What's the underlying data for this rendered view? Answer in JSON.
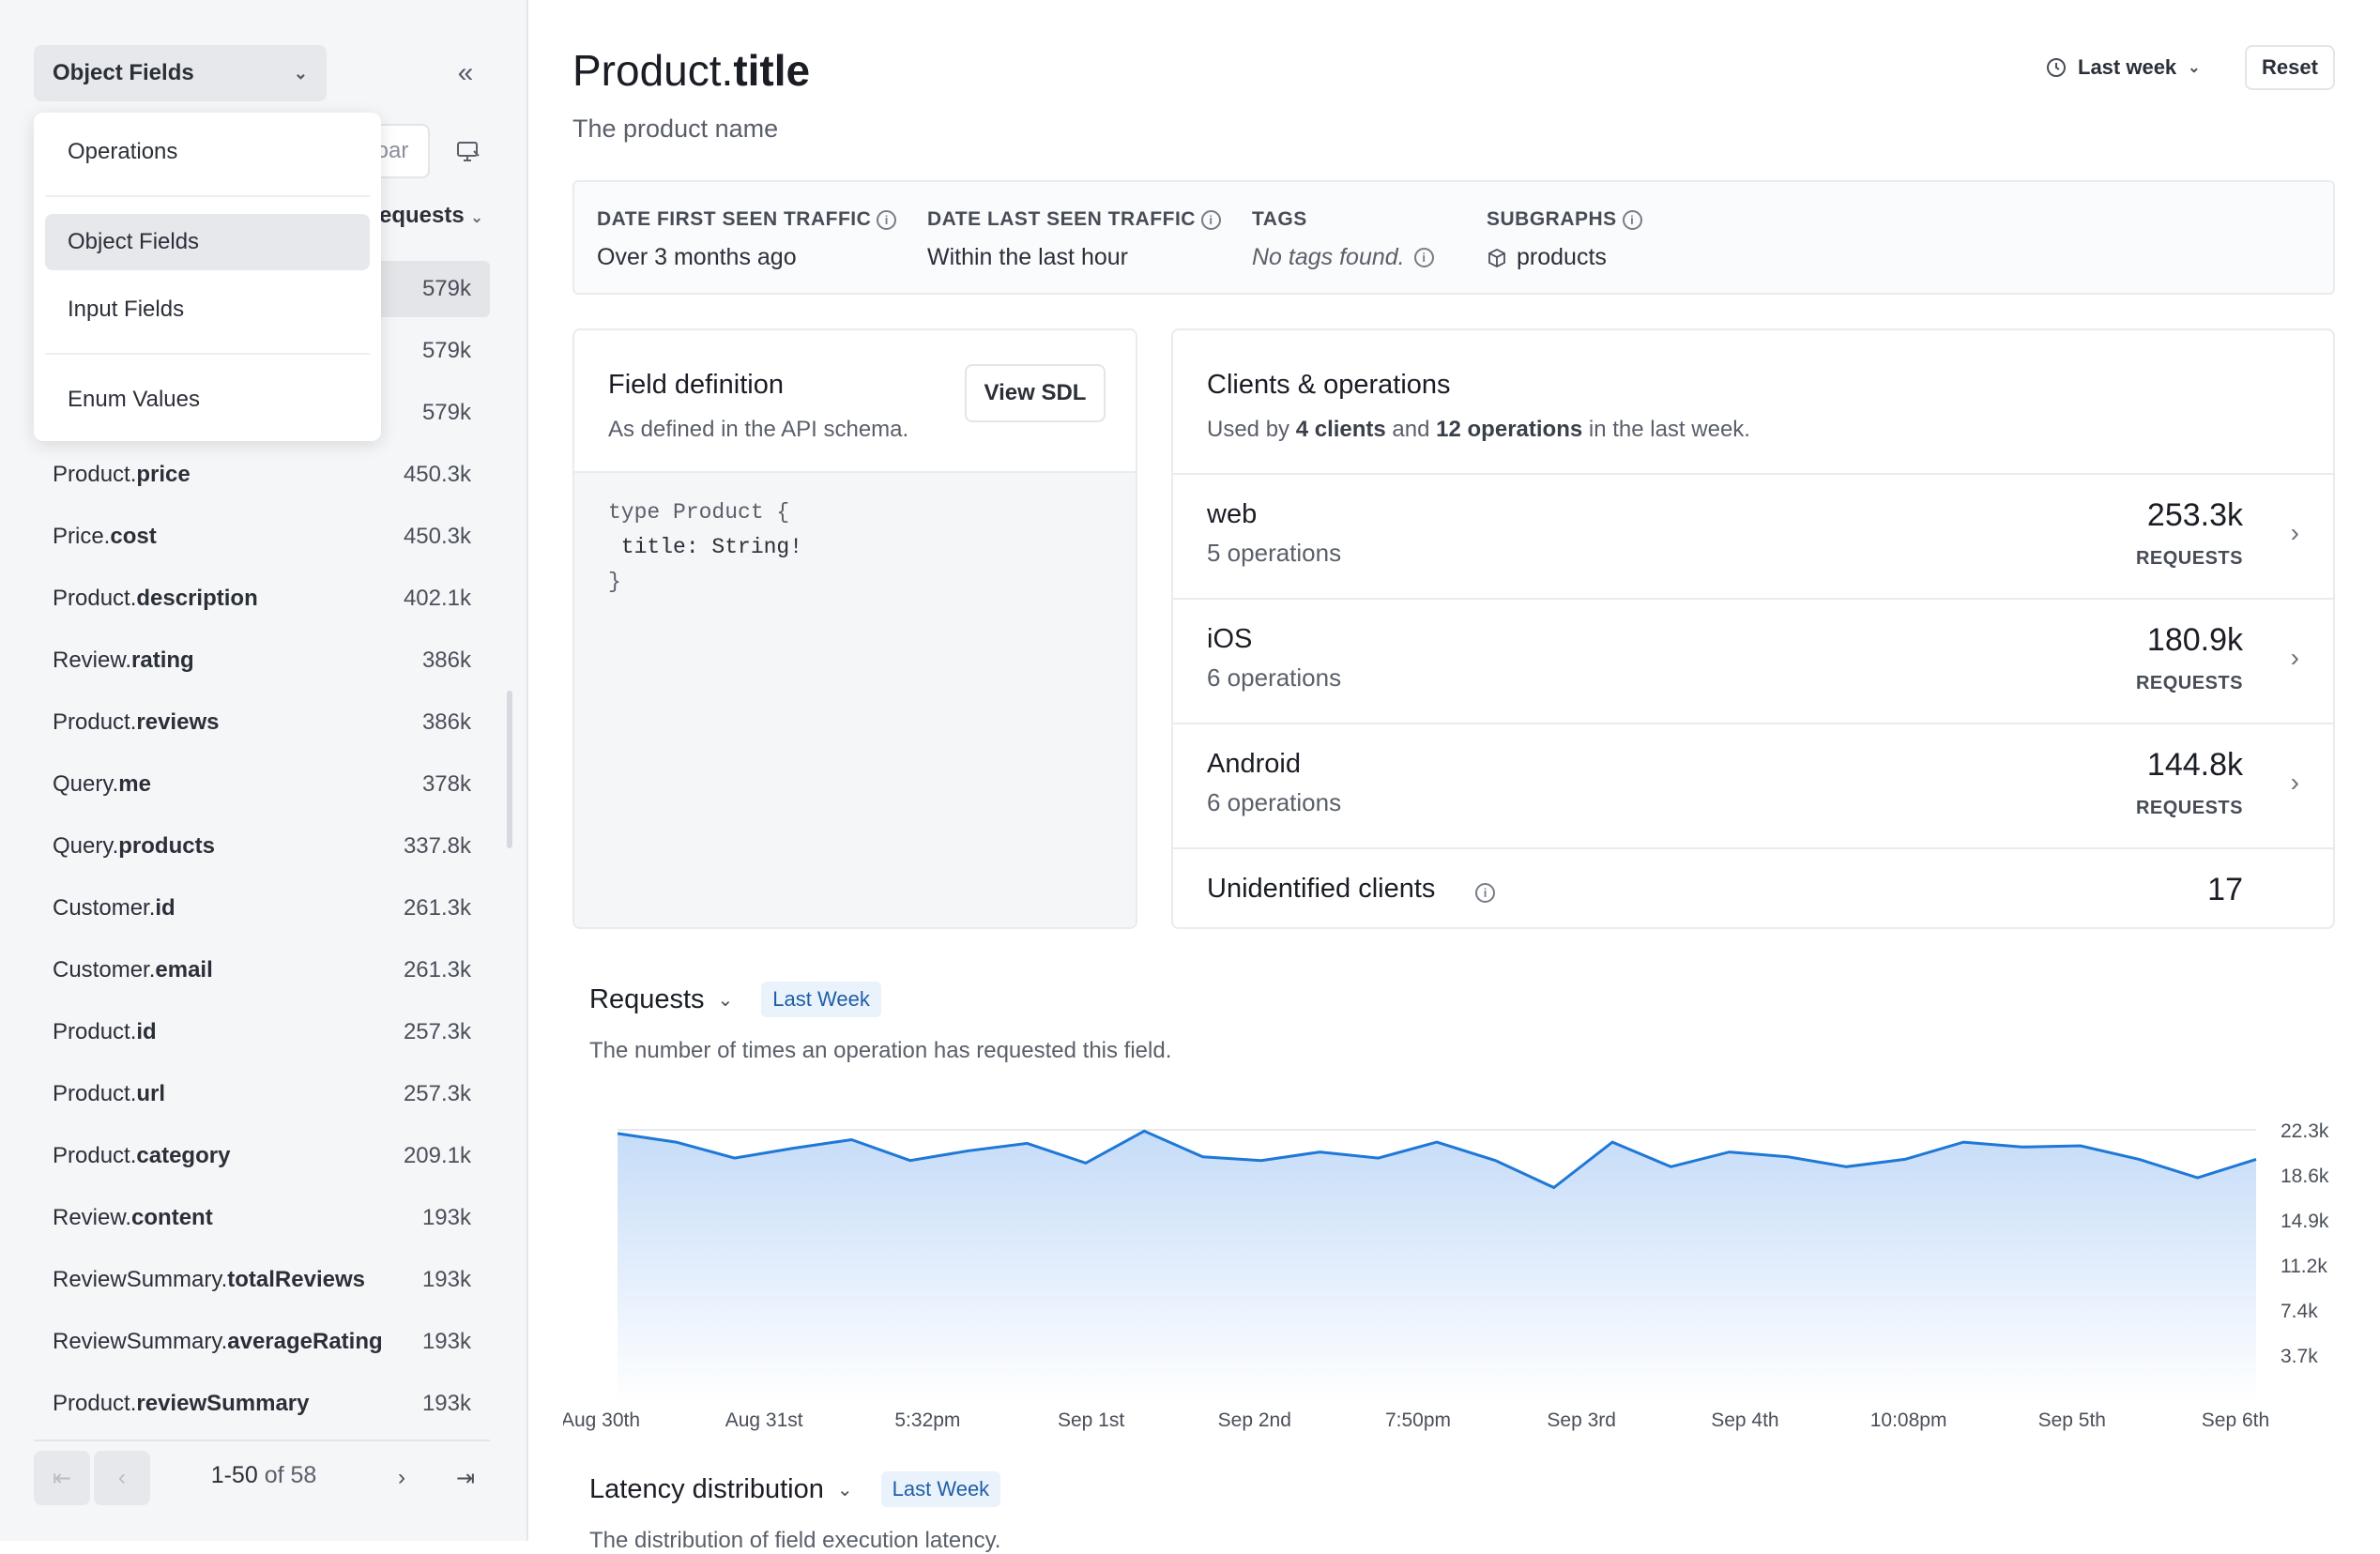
{
  "sidebar": {
    "field_type_select": "Object Fields",
    "search_fragment": "oar",
    "sort_fragment": "equests",
    "rows": [
      {
        "prefix": "",
        "field": "",
        "count": "579k",
        "selected": true
      },
      {
        "prefix": "",
        "field": "",
        "count": "579k"
      },
      {
        "prefix": "",
        "field": "",
        "count": "579k"
      },
      {
        "prefix": "Product.",
        "field": "price",
        "count": "450.3k"
      },
      {
        "prefix": "Price.",
        "field": "cost",
        "count": "450.3k"
      },
      {
        "prefix": "Product.",
        "field": "description",
        "count": "402.1k"
      },
      {
        "prefix": "Review.",
        "field": "rating",
        "count": "386k"
      },
      {
        "prefix": "Product.",
        "field": "reviews",
        "count": "386k"
      },
      {
        "prefix": "Query.",
        "field": "me",
        "count": "378k"
      },
      {
        "prefix": "Query.",
        "field": "products",
        "count": "337.8k"
      },
      {
        "prefix": "Customer.",
        "field": "id",
        "count": "261.3k"
      },
      {
        "prefix": "Customer.",
        "field": "email",
        "count": "261.3k"
      },
      {
        "prefix": "Product.",
        "field": "id",
        "count": "257.3k"
      },
      {
        "prefix": "Product.",
        "field": "url",
        "count": "257.3k"
      },
      {
        "prefix": "Product.",
        "field": "category",
        "count": "209.1k"
      },
      {
        "prefix": "Review.",
        "field": "content",
        "count": "193k"
      },
      {
        "prefix": "ReviewSummary.",
        "field": "totalReviews",
        "count": "193k"
      },
      {
        "prefix": "ReviewSummary.",
        "field": "averageRating",
        "count": "193k"
      },
      {
        "prefix": "Product.",
        "field": "reviewSummary",
        "count": "193k"
      }
    ],
    "pager": {
      "range": "1-50",
      "of": "of 58"
    }
  },
  "dropdown": {
    "items": [
      "Operations",
      "Object Fields",
      "Input Fields",
      "Enum Values"
    ],
    "active": "Object Fields"
  },
  "header": {
    "title_prefix": "Product.",
    "title_field": "title",
    "subtitle": "The product name",
    "timerange": "Last week",
    "reset": "Reset"
  },
  "meta": {
    "first_seen_label": "DATE FIRST SEEN TRAFFIC",
    "first_seen_value": "Over 3 months ago",
    "last_seen_label": "DATE LAST SEEN TRAFFIC",
    "last_seen_value": "Within the last hour",
    "tags_label": "TAGS",
    "tags_value": "No tags found.",
    "subgraphs_label": "SUBGRAPHS",
    "subgraphs_value": "products"
  },
  "field_definition": {
    "title": "Field definition",
    "subtitle": "As defined in the API schema.",
    "view_sdl": "View SDL",
    "code_line1": "type Product {",
    "code_line2": " title: String!",
    "code_line3": "}"
  },
  "clients": {
    "title": "Clients & operations",
    "sub_pre": "Used by ",
    "sub_clients": "4 clients",
    "sub_mid": " and ",
    "sub_ops": "12 operations",
    "sub_post": " in the last week.",
    "rows": [
      {
        "name": "web",
        "ops": "5 operations",
        "value": "253.3k",
        "unit": "REQUESTS"
      },
      {
        "name": "iOS",
        "ops": "6 operations",
        "value": "180.9k",
        "unit": "REQUESTS"
      },
      {
        "name": "Android",
        "ops": "6 operations",
        "value": "144.8k",
        "unit": "REQUESTS"
      },
      {
        "name": "Unidentified clients",
        "ops": "",
        "value": "17",
        "unit": ""
      }
    ]
  },
  "requests_section": {
    "title": "Requests",
    "badge": "Last Week",
    "description": "The number of times an operation has requested this field."
  },
  "latency_section": {
    "title": "Latency distribution",
    "badge": "Last Week",
    "description": "The distribution of field execution latency."
  },
  "colors": {
    "line": "#1e78d7",
    "fill_top": "#c6dcf8",
    "fill_bottom": "#ffffff"
  },
  "chart_data": {
    "type": "area",
    "x_tick_labels": [
      "Aug 30th",
      "Aug 31st",
      "5:32pm",
      "Sep 1st",
      "Sep 2nd",
      "7:50pm",
      "Sep 3rd",
      "Sep 4th",
      "10:08pm",
      "Sep 5th",
      "Sep 6th"
    ],
    "y_tick_labels": [
      "22.3k",
      "18.6k",
      "14.9k",
      "11.2k",
      "7.4k",
      "3.7k"
    ],
    "ylim": [
      0,
      22300
    ],
    "values": [
      22000,
      21300,
      20000,
      20800,
      21500,
      19800,
      20600,
      21200,
      19600,
      22200,
      20100,
      19800,
      20500,
      20000,
      21300,
      19800,
      17600,
      21300,
      19300,
      20500,
      20100,
      19300,
      19900,
      21300,
      20900,
      21000,
      19900,
      18400,
      19900
    ]
  }
}
